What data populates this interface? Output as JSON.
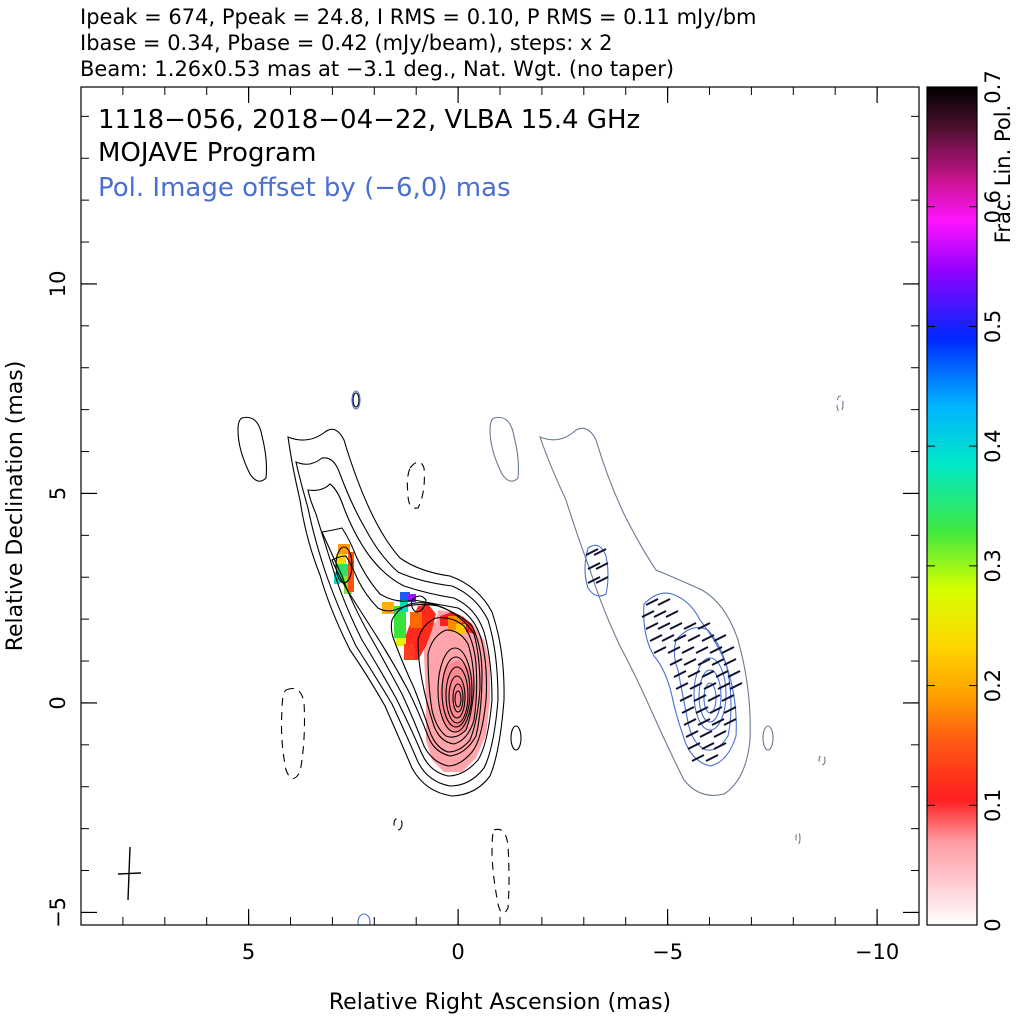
{
  "header": {
    "line1": "Ipeak = 674, Ppeak = 24.8, I RMS = 0.10, P RMS = 0.11 mJy/bm",
    "line2": "Ibase = 0.34, Pbase = 0.42 (mJy/beam), steps: x 2",
    "line3": "Beam: 1.26x0.53 mas at −3.1 deg., Nat. Wgt. (no taper)"
  },
  "chart_data": {
    "type": "contour",
    "annotations": {
      "source": "1118−056, 2018−04−22, VLBA 15.4 GHz",
      "program": "MOJAVE Program",
      "offset_note": "Pol. Image offset by (−6,0) mas"
    },
    "xlabel": "Relative Right Ascension (mas)",
    "ylabel": "Relative Declination (mas)",
    "xlim": [
      9,
      -11
    ],
    "ylim": [
      -5.3,
      14.7
    ],
    "x_ticks": [
      {
        "value": 5,
        "label": "5"
      },
      {
        "value": 0,
        "label": "0"
      },
      {
        "value": -5,
        "label": "−5"
      },
      {
        "value": -10,
        "label": "−10"
      }
    ],
    "y_ticks": [
      {
        "value": 10,
        "label": "10"
      },
      {
        "value": 5,
        "label": "5"
      },
      {
        "value": 0,
        "label": "0"
      },
      {
        "value": -5,
        "label": "−5"
      }
    ],
    "colorbar": {
      "label": "Frac. Lin. Pol.",
      "range": [
        0,
        0.7
      ],
      "ticks": [
        {
          "value": 0,
          "label": "0"
        },
        {
          "value": 0.1,
          "label": "0.1"
        },
        {
          "value": 0.2,
          "label": "0.2"
        },
        {
          "value": 0.3,
          "label": "0.3"
        },
        {
          "value": 0.4,
          "label": "0.4"
        },
        {
          "value": 0.5,
          "label": "0.5"
        },
        {
          "value": 0.6,
          "label": "0.6"
        },
        {
          "value": 0.7,
          "label": "0.7"
        }
      ]
    },
    "beam": {
      "major_mas": 1.26,
      "minor_mas": 0.53,
      "pa_deg": -3.1,
      "center": [
        7.8,
        -4.0
      ]
    },
    "colors": {
      "stokes_i_contours": "#000000",
      "pol_contours": "#4a6fd1",
      "pol_text": "#4a6fd1",
      "evpa_sticks": "#101030"
    }
  }
}
